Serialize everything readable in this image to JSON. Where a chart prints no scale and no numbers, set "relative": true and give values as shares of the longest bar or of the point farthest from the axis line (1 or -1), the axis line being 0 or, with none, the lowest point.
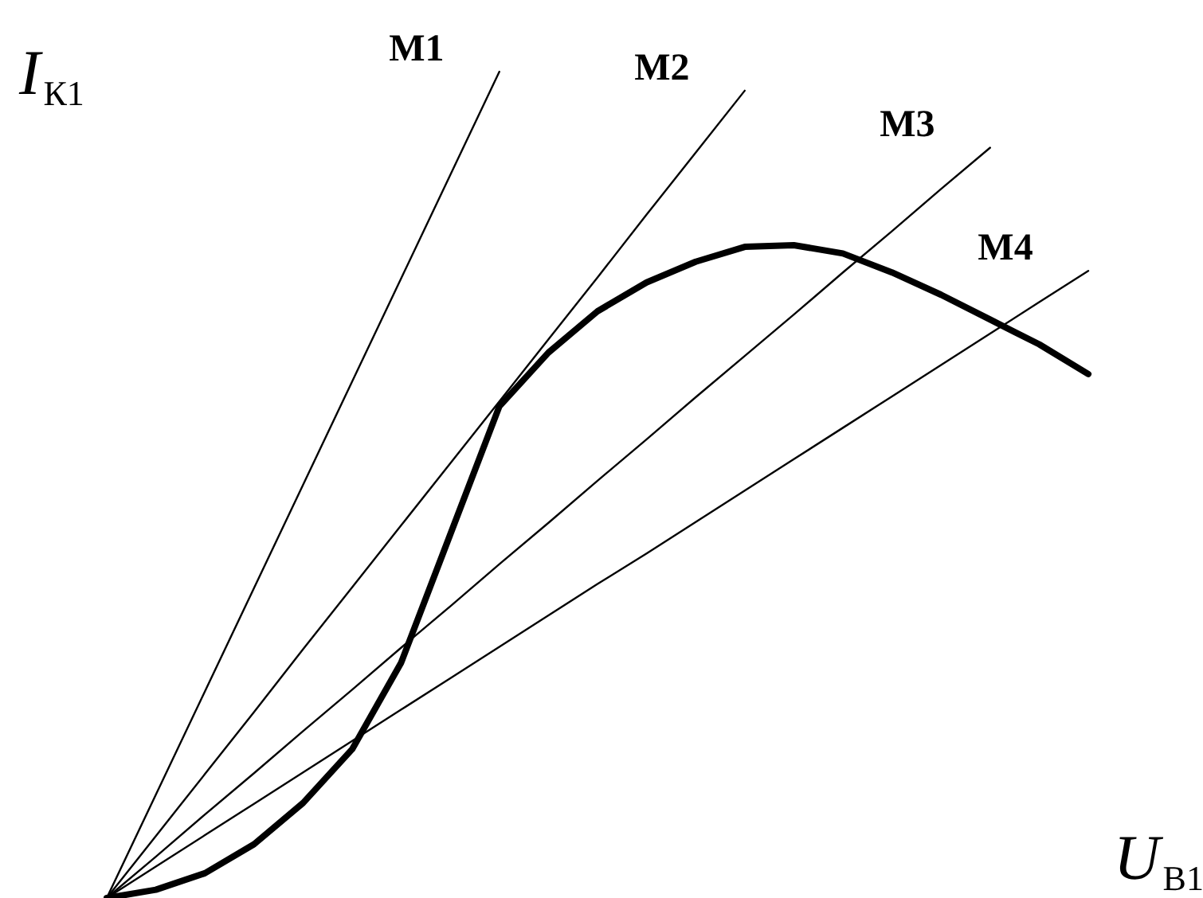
{
  "chart_data": {
    "type": "line",
    "relative": true,
    "xlabel": "U$_{В1}$",
    "ylabel": "I$_{К1}$",
    "marker": "none",
    "line_style": "solid",
    "categories": [
      null,
      null,
      null,
      null,
      null,
      null,
      null,
      null,
      null,
      null,
      null,
      null,
      null,
      null,
      null,
      null,
      null,
      null,
      null,
      null,
      null
    ],
    "series": [
      {
        "color": "#000000",
        "values": [
          0,
          0.01,
          0.03,
          0.065,
          0.115,
          0.18,
          0.285,
          0.44,
          0.595,
          0.66,
          0.71,
          0.745,
          0.77,
          0.788,
          0.79,
          0.78,
          0.757,
          0.73,
          0.7,
          0.67,
          0.634
        ]
      },
      {
        "name": "M1",
        "color": "#000000",
        "values": [
          0,
          0.125,
          0.25,
          0.375,
          0.5,
          0.625,
          0.75,
          0.875,
          1.0,
          null,
          null,
          null,
          null,
          null,
          null,
          null,
          null,
          null,
          null,
          null,
          null
        ]
      },
      {
        "name": "M2",
        "color": "#000000",
        "values": [
          0,
          0.075,
          0.15,
          0.225,
          0.301,
          0.376,
          0.451,
          0.526,
          0.601,
          0.676,
          0.751,
          0.827,
          0.902,
          0.977,
          null,
          null,
          null,
          null,
          null,
          null,
          null
        ]
      },
      {
        "name": "M3",
        "color": "#000000",
        "values": [
          0,
          0.05,
          0.101,
          0.151,
          0.202,
          0.252,
          0.303,
          0.353,
          0.404,
          0.454,
          0.505,
          0.555,
          0.606,
          0.656,
          0.706,
          0.757,
          0.807,
          0.858,
          0.908,
          null,
          null
        ]
      },
      {
        "name": "M4",
        "color": "#000000",
        "values": [
          0,
          0.038,
          0.076,
          0.114,
          0.152,
          0.19,
          0.228,
          0.266,
          0.304,
          0.342,
          0.38,
          0.417,
          0.455,
          0.493,
          0.531,
          0.569,
          0.607,
          0.645,
          0.683,
          0.721,
          0.759
        ]
      }
    ]
  }
}
